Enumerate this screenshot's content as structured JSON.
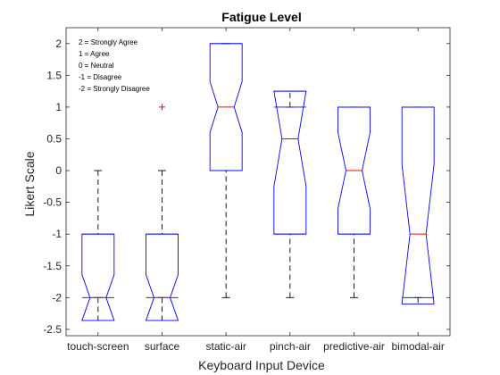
{
  "chart_data": {
    "type": "box",
    "title": "Fatigue Level",
    "xlabel": "Keyboard Input Device",
    "ylabel": "Likert Scale",
    "ylim": [
      -2.6,
      2.25
    ],
    "yticks": [
      -2.5,
      -2,
      -1.5,
      -1,
      -0.5,
      0,
      0.5,
      1,
      1.5,
      2
    ],
    "ytick_labels": [
      "-2.5",
      "-2",
      "-1.5",
      "-1",
      "-0.5",
      "0",
      "0.5",
      "1",
      "1.5",
      "2"
    ],
    "categories": [
      "touch-screen",
      "surface",
      "static-air",
      "pinch-air",
      "predictive-air",
      "bimodal-air"
    ],
    "grid": false,
    "notched": true,
    "annotations": [
      "2 = Strongly Agree",
      "1 = Agree",
      "0 = Neutral",
      "-1 = Disagree",
      "-2 = Strongly Disagree"
    ],
    "boxes": [
      {
        "category": "touch-screen",
        "q1": -2,
        "median": -2,
        "q3": -1,
        "notch_low": -2.36,
        "notch_high": -1.64,
        "whisker_low": -2,
        "whisker_high": 0,
        "outliers": []
      },
      {
        "category": "surface",
        "q1": -2,
        "median": -2,
        "q3": -1,
        "notch_low": -2.36,
        "notch_high": -1.64,
        "whisker_low": -2,
        "whisker_high": 0,
        "outliers": [
          1
        ]
      },
      {
        "category": "static-air",
        "q1": 0,
        "median": 1,
        "q3": 2,
        "notch_low": 0.6,
        "notch_high": 1.4,
        "whisker_low": -2,
        "whisker_high": 2,
        "outliers": []
      },
      {
        "category": "pinch-air",
        "q1": -1,
        "median": 0.5,
        "q3": 1,
        "notch_low": -0.25,
        "notch_high": 1.25,
        "whisker_low": -2,
        "whisker_high": 1,
        "outliers": []
      },
      {
        "category": "predictive-air",
        "q1": -1,
        "median": 0,
        "q3": 1,
        "notch_low": -0.6,
        "notch_high": 0.6,
        "whisker_low": -2,
        "whisker_high": 1,
        "outliers": []
      },
      {
        "category": "bimodal-air",
        "q1": -2,
        "median": -1,
        "q3": 1,
        "notch_low": -2.1,
        "notch_high": 0.1,
        "whisker_low": -2,
        "whisker_high": 1,
        "outliers": []
      }
    ],
    "colors": {
      "box": "#0000ff",
      "median": "#ff0000",
      "whisker": "#000000",
      "outlier": "#ff0000",
      "axes": "#262626"
    }
  }
}
